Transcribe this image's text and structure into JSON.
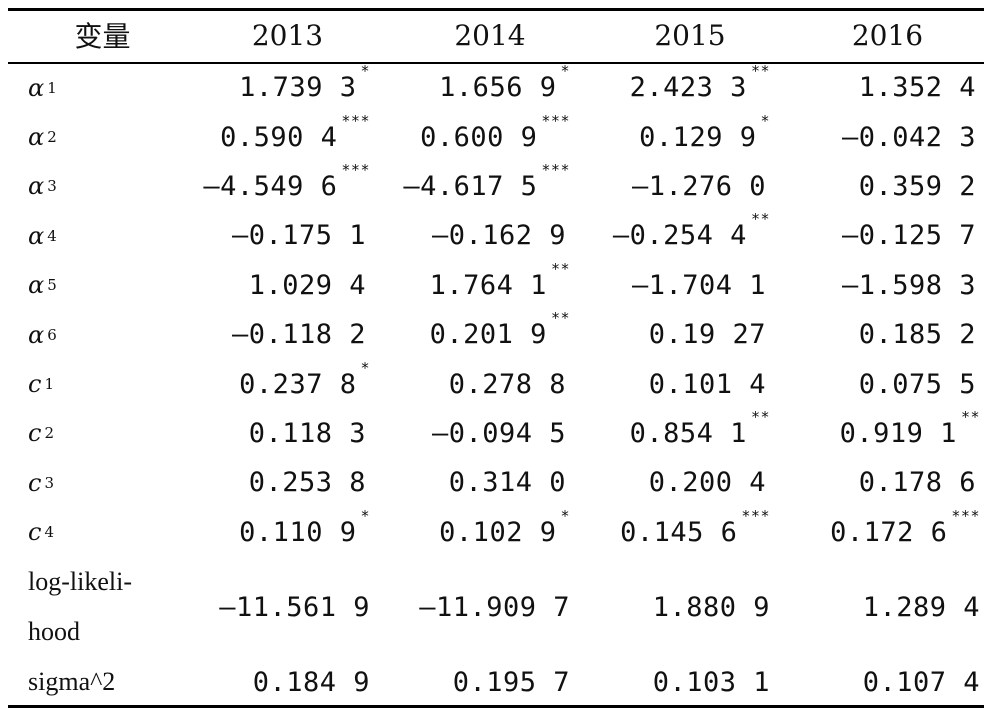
{
  "header": [
    "变量",
    "2013",
    "2014",
    "2015",
    "2016"
  ],
  "rows": [
    {
      "var": "α",
      "sub": "1",
      "cells": [
        {
          "v": "1.739 3",
          "s": "*"
        },
        {
          "v": "1.656 9",
          "s": "*"
        },
        {
          "v": "2.423 3",
          "s": "**"
        },
        {
          "v": "1.352 4",
          "s": ""
        }
      ]
    },
    {
      "var": "α",
      "sub": "2",
      "cells": [
        {
          "v": "0.590 4",
          "s": "***"
        },
        {
          "v": "0.600 9",
          "s": "***"
        },
        {
          "v": "0.129 9",
          "s": "*"
        },
        {
          "v": "—0.042 3",
          "s": ""
        }
      ]
    },
    {
      "var": "α",
      "sub": "3",
      "cells": [
        {
          "v": "—4.549 6",
          "s": "***"
        },
        {
          "v": "—4.617 5",
          "s": "***"
        },
        {
          "v": "—1.276 0",
          "s": ""
        },
        {
          "v": "0.359 2",
          "s": ""
        }
      ]
    },
    {
      "var": "α",
      "sub": "4",
      "cells": [
        {
          "v": "—0.175 1",
          "s": ""
        },
        {
          "v": "—0.162 9",
          "s": ""
        },
        {
          "v": "—0.254 4",
          "s": "**"
        },
        {
          "v": "—0.125 7",
          "s": ""
        }
      ]
    },
    {
      "var": "α",
      "sub": "5",
      "cells": [
        {
          "v": "1.029 4",
          "s": ""
        },
        {
          "v": "1.764 1",
          "s": "**"
        },
        {
          "v": "—1.704 1",
          "s": ""
        },
        {
          "v": "—1.598 3",
          "s": ""
        }
      ]
    },
    {
      "var": "α",
      "sub": "6",
      "cells": [
        {
          "v": "—0.118 2",
          "s": ""
        },
        {
          "v": "0.201 9",
          "s": "**"
        },
        {
          "v": "0.19 27",
          "s": ""
        },
        {
          "v": "0.185 2",
          "s": ""
        }
      ]
    },
    {
      "var": "c",
      "sub": "1",
      "cells": [
        {
          "v": "0.237 8",
          "s": "*"
        },
        {
          "v": "0.278 8",
          "s": ""
        },
        {
          "v": "0.101 4",
          "s": ""
        },
        {
          "v": "0.075 5",
          "s": ""
        }
      ]
    },
    {
      "var": "c",
      "sub": "2",
      "cells": [
        {
          "v": "0.118 3",
          "s": ""
        },
        {
          "v": "—0.094 5",
          "s": ""
        },
        {
          "v": "0.854 1",
          "s": "**"
        },
        {
          "v": "0.919 1",
          "s": "**"
        }
      ]
    },
    {
      "var": "c",
      "sub": "3",
      "cells": [
        {
          "v": "0.253 8",
          "s": ""
        },
        {
          "v": "0.314 0",
          "s": ""
        },
        {
          "v": "0.200 4",
          "s": ""
        },
        {
          "v": "0.178 6",
          "s": ""
        }
      ]
    },
    {
      "var": "c",
      "sub": "4",
      "cells": [
        {
          "v": "0.110 9",
          "s": "*"
        },
        {
          "v": "0.102 9",
          "s": "*"
        },
        {
          "v": "0.145 6",
          "s": "***"
        },
        {
          "v": "0.172 6",
          "s": "***"
        }
      ]
    }
  ],
  "loglik": {
    "line1": "log-likeli-",
    "line2": "hood",
    "cells": [
      "—11.561 9",
      "—11.909 7",
      "1.880 9",
      "1.289 4"
    ]
  },
  "sigma": {
    "label": "sigma^2",
    "cells": [
      "0.184 9",
      "0.195 7",
      "0.103 1",
      "0.107 4"
    ]
  }
}
